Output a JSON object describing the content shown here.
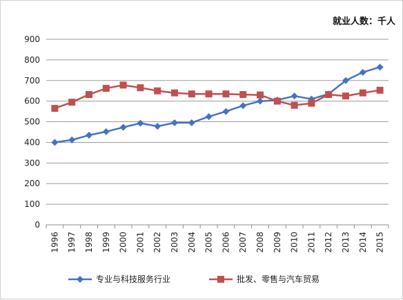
{
  "chart_data": {
    "type": "line",
    "unit_label": "就业人数：千人",
    "categories": [
      "1996",
      "1997",
      "1998",
      "1999",
      "2000",
      "2001",
      "2002",
      "2003",
      "2004",
      "2005",
      "2006",
      "2007",
      "2008",
      "2009",
      "2010",
      "2011",
      "2012",
      "2013",
      "2014",
      "2015"
    ],
    "y_ticks": [
      "0",
      "100",
      "200",
      "300",
      "400",
      "500",
      "600",
      "700",
      "800",
      "900"
    ],
    "ylim": [
      0,
      900
    ],
    "grid": "horizontal",
    "legend_position": "bottom",
    "series": [
      {
        "name": "专业与科技服务行业",
        "color": "#4472C4",
        "marker": "diamond",
        "values": [
          400,
          412,
          435,
          452,
          473,
          493,
          478,
          495,
          495,
          525,
          550,
          578,
          600,
          605,
          625,
          610,
          635,
          700,
          740,
          765
        ]
      },
      {
        "name": "批发、零售与汽车贸易",
        "color": "#C0504D",
        "marker": "square",
        "values": [
          565,
          595,
          632,
          662,
          678,
          665,
          650,
          640,
          635,
          635,
          635,
          632,
          630,
          600,
          580,
          590,
          632,
          625,
          640,
          653
        ]
      }
    ]
  }
}
